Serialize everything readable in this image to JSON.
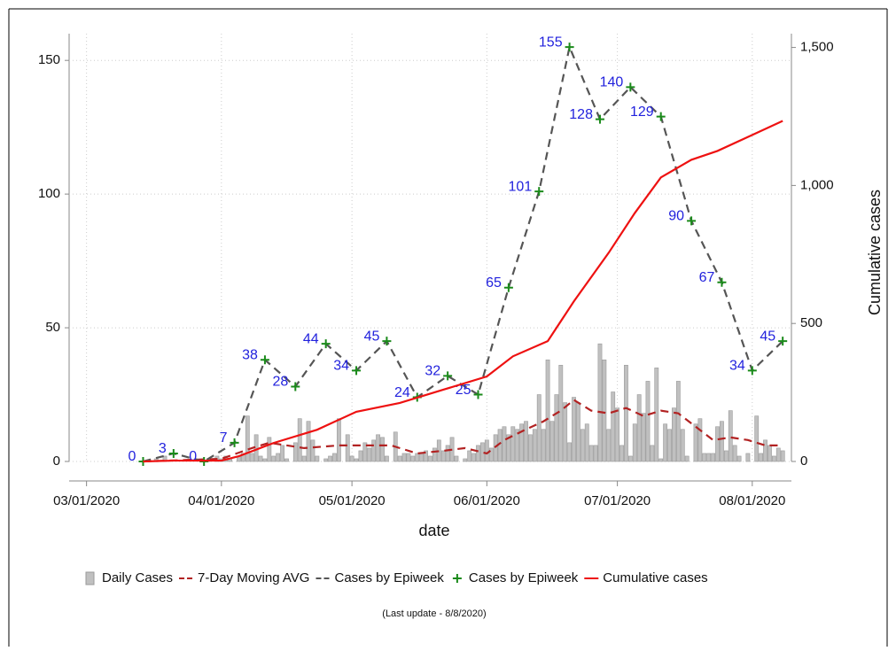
{
  "chart_data": {
    "type": "combo",
    "x_label": "date",
    "y2_label": "Cumulative cases",
    "note": "(Last update -   8/8/2020)",
    "xlim": [
      "2020-02-26",
      "2020-08-10"
    ],
    "xticks": [
      {
        "value": "2020-03-01",
        "label": "03/01/2020"
      },
      {
        "value": "2020-04-01",
        "label": "04/01/2020"
      },
      {
        "value": "2020-05-01",
        "label": "05/01/2020"
      },
      {
        "value": "2020-06-01",
        "label": "06/01/2020"
      },
      {
        "value": "2020-07-01",
        "label": "07/01/2020"
      },
      {
        "value": "2020-08-01",
        "label": "08/01/2020"
      }
    ],
    "ylim": [
      0,
      160
    ],
    "yticks": [
      0,
      50,
      100,
      150
    ],
    "y2lim": [
      0,
      1550
    ],
    "y2ticks": [
      0,
      500,
      {
        "value": 1000,
        "label": "1,000"
      },
      {
        "value": 1500,
        "label": "1,500"
      }
    ],
    "grid": true,
    "legend": "bottom",
    "series": [
      {
        "name": "Daily Cases",
        "type": "bar",
        "color": "#c0c0c0",
        "start": "2020-03-14",
        "values": [
          0,
          0,
          0,
          1,
          0,
          2,
          0,
          0,
          0,
          0,
          0,
          0,
          0,
          0,
          0,
          1,
          0,
          2,
          1,
          2,
          1,
          0,
          2,
          3,
          17,
          3,
          10,
          2,
          1,
          9,
          2,
          3,
          6,
          1,
          0,
          7,
          16,
          2,
          15,
          8,
          2,
          0,
          1,
          2,
          3,
          16,
          0,
          10,
          2,
          1,
          4,
          7,
          5,
          8,
          10,
          9,
          2,
          0,
          11,
          2,
          3,
          3,
          2,
          3,
          3,
          4,
          2,
          5,
          8,
          4,
          6,
          9,
          2,
          0,
          1,
          4,
          3,
          6,
          7,
          8,
          5,
          10,
          12,
          13,
          10,
          13,
          12,
          14,
          15,
          10,
          12,
          25,
          12,
          38,
          15,
          25,
          36,
          22,
          7,
          24,
          22,
          12,
          14,
          6,
          6,
          44,
          38,
          12,
          26,
          20,
          6,
          36,
          2,
          14,
          25,
          18,
          30,
          6,
          35,
          1,
          14,
          12,
          20,
          30,
          12,
          2,
          0,
          14,
          16,
          3,
          3,
          3,
          13,
          15,
          4,
          19,
          6,
          2,
          0,
          3,
          0,
          17,
          3,
          8,
          6,
          2,
          5,
          4
        ]
      },
      {
        "name": "7-Day Moving AVG",
        "type": "line",
        "line_style": "dashed",
        "color": "#b22222",
        "x": [
          "2020-03-14",
          "2020-04-01",
          "2020-04-08",
          "2020-04-12",
          "2020-04-20",
          "2020-04-28",
          "2020-05-05",
          "2020-05-10",
          "2020-05-16",
          "2020-05-22",
          "2020-05-27",
          "2020-06-01",
          "2020-06-05",
          "2020-06-10",
          "2020-06-14",
          "2020-06-18",
          "2020-06-21",
          "2020-06-25",
          "2020-06-29",
          "2020-07-03",
          "2020-07-07",
          "2020-07-11",
          "2020-07-15",
          "2020-07-19",
          "2020-07-23",
          "2020-07-27",
          "2020-07-31",
          "2020-08-04",
          "2020-08-08"
        ],
        "values": [
          0,
          1,
          5,
          7,
          5,
          6,
          6,
          6,
          3,
          4,
          5,
          3,
          8,
          12,
          15,
          19,
          23,
          19,
          18,
          20,
          17,
          19,
          18,
          13,
          8,
          9,
          8,
          6,
          6
        ]
      },
      {
        "name": "Cases by Epiweek",
        "type": "line",
        "line_style": "dashed",
        "color": "#555555",
        "x": [
          "2020-03-14",
          "2020-03-21",
          "2020-03-28",
          "2020-04-04",
          "2020-04-11",
          "2020-04-18",
          "2020-04-25",
          "2020-05-02",
          "2020-05-09",
          "2020-05-16",
          "2020-05-23",
          "2020-05-30",
          "2020-06-06",
          "2020-06-13",
          "2020-06-20",
          "2020-06-27",
          "2020-07-04",
          "2020-07-11",
          "2020-07-18",
          "2020-07-25",
          "2020-08-01",
          "2020-08-08"
        ],
        "values": [
          0,
          3,
          0,
          7,
          38,
          28,
          44,
          34,
          45,
          24,
          32,
          25,
          65,
          101,
          155,
          128,
          140,
          129,
          90,
          67,
          34,
          45
        ]
      },
      {
        "name": "Cases by Epiweek",
        "type": "scatter",
        "marker": "+",
        "color": "#1a8a1a",
        "label_color": "#2222dd",
        "x": [
          "2020-03-14",
          "2020-03-21",
          "2020-03-28",
          "2020-04-04",
          "2020-04-11",
          "2020-04-18",
          "2020-04-25",
          "2020-05-02",
          "2020-05-09",
          "2020-05-16",
          "2020-05-23",
          "2020-05-30",
          "2020-06-06",
          "2020-06-13",
          "2020-06-20",
          "2020-06-27",
          "2020-07-04",
          "2020-07-11",
          "2020-07-18",
          "2020-07-25",
          "2020-08-01",
          "2020-08-08"
        ],
        "values": [
          0,
          3,
          0,
          7,
          38,
          28,
          44,
          34,
          45,
          24,
          32,
          25,
          65,
          101,
          155,
          128,
          140,
          129,
          90,
          67,
          34,
          45
        ]
      },
      {
        "name": "Cumulative cases",
        "type": "line",
        "line_style": "solid",
        "color": "#ee1111",
        "axis": "y2",
        "x": [
          "2020-03-14",
          "2020-03-21",
          "2020-04-01",
          "2020-04-05",
          "2020-04-13",
          "2020-04-23",
          "2020-05-02",
          "2020-05-12",
          "2020-05-22",
          "2020-06-01",
          "2020-06-07",
          "2020-06-15",
          "2020-06-21",
          "2020-06-29",
          "2020-07-05",
          "2020-07-11",
          "2020-07-18",
          "2020-07-24",
          "2020-08-01",
          "2020-08-08"
        ],
        "values": [
          0,
          3,
          3,
          19,
          67,
          115,
          180,
          212,
          260,
          308,
          381,
          436,
          580,
          756,
          900,
          1029,
          1093,
          1125,
          1183,
          1234
        ]
      }
    ]
  }
}
